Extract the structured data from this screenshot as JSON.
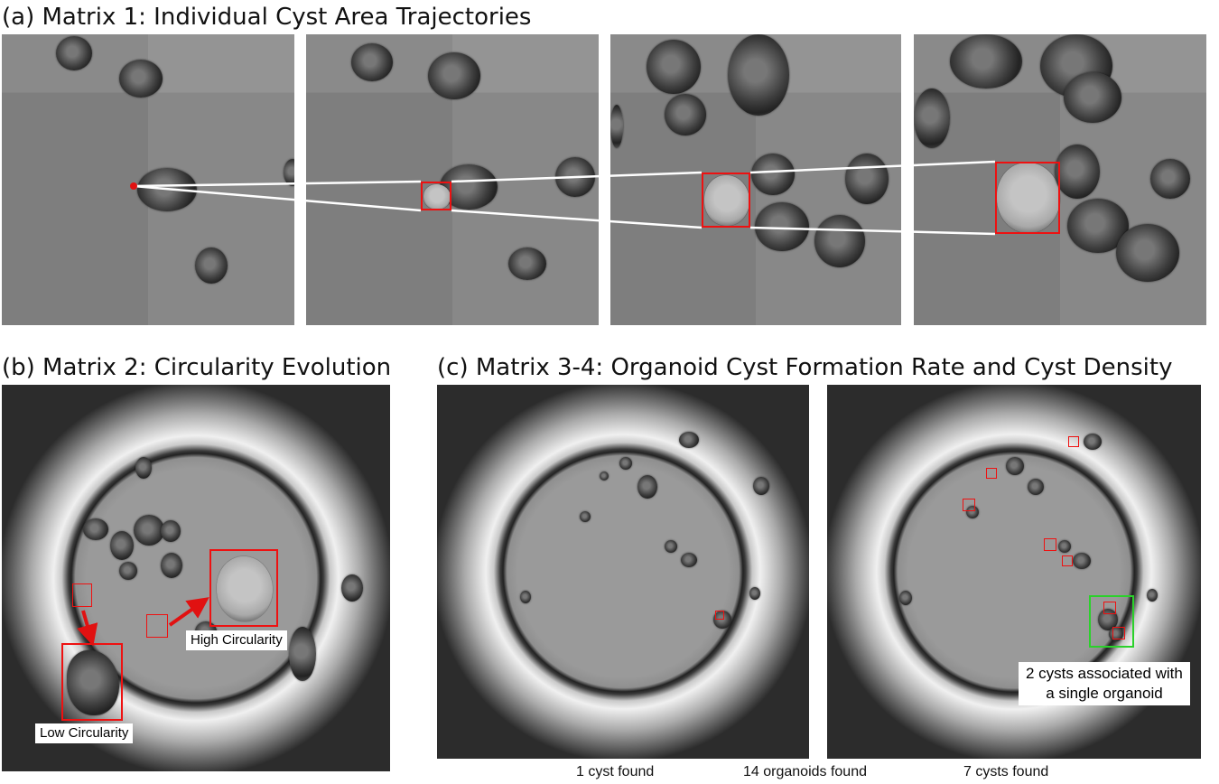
{
  "titles": {
    "a": "(a) Matrix 1: Individual Cyst Area Trajectories",
    "b": "(b) Matrix 2: Circularity Evolution",
    "c": "(c) Matrix 3-4: Organoid Cyst Formation Rate and Cyst Density"
  },
  "panel_b": {
    "low_label": "Low Circularity",
    "high_label": "High Circularity"
  },
  "panel_c": {
    "annotation": "2 cysts associated with\na single organoid",
    "captions": [
      "1 cyst found",
      "14 organoids found",
      "7 cysts found"
    ]
  },
  "colors": {
    "box_red": "#e11111",
    "box_green": "#2bd12b",
    "trajectory": "#ffffff"
  }
}
